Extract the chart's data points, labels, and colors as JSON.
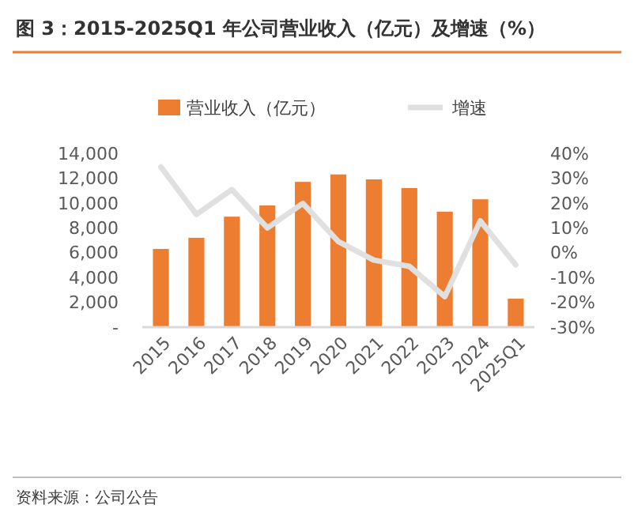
{
  "chart_data": {
    "type": "bar",
    "title": "图 3：2015-2025Q1 年公司营业收入（亿元）及增速（%）",
    "categories": [
      "2015",
      "2016",
      "2017",
      "2018",
      "2019",
      "2020",
      "2021",
      "2022",
      "2023",
      "2024",
      "2025Q1"
    ],
    "series": [
      {
        "name": "营业收入（亿元）",
        "color": "#ed7d31",
        "values": [
          6300,
          7200,
          8900,
          9800,
          11700,
          12300,
          11900,
          11200,
          9300,
          10300,
          2300
        ]
      },
      {
        "name": "增速",
        "type": "line",
        "axis": "y2",
        "color": "#e0e0e0",
        "values": [
          34.5,
          15.4,
          25.4,
          10,
          19.8,
          4.5,
          -3,
          -5.5,
          -17.7,
          12.8,
          -4.9
        ]
      }
    ],
    "ylim": [
      0,
      14000
    ],
    "yticks": [
      {
        "value": 0,
        "label": "-"
      },
      {
        "value": 2000,
        "label": "2,000"
      },
      {
        "value": 4000,
        "label": "4,000"
      },
      {
        "value": 6000,
        "label": "6,000"
      },
      {
        "value": 8000,
        "label": "8,000"
      },
      {
        "value": 10000,
        "label": "10,000"
      },
      {
        "value": 12000,
        "label": "12,000"
      },
      {
        "value": 14000,
        "label": "14,000"
      }
    ],
    "y2lim": [
      -30,
      40
    ],
    "y2ticks": [
      {
        "value": -30,
        "label": "-30%"
      },
      {
        "value": -20,
        "label": "-20%"
      },
      {
        "value": -10,
        "label": "-10%"
      },
      {
        "value": 0,
        "label": "0%"
      },
      {
        "value": 10,
        "label": "10%"
      },
      {
        "value": 20,
        "label": "20%"
      },
      {
        "value": 30,
        "label": "30%"
      },
      {
        "value": 40,
        "label": "40%"
      }
    ],
    "legend": "top",
    "grid": false,
    "annotations": [
      "资料来源：公司公告"
    ]
  }
}
